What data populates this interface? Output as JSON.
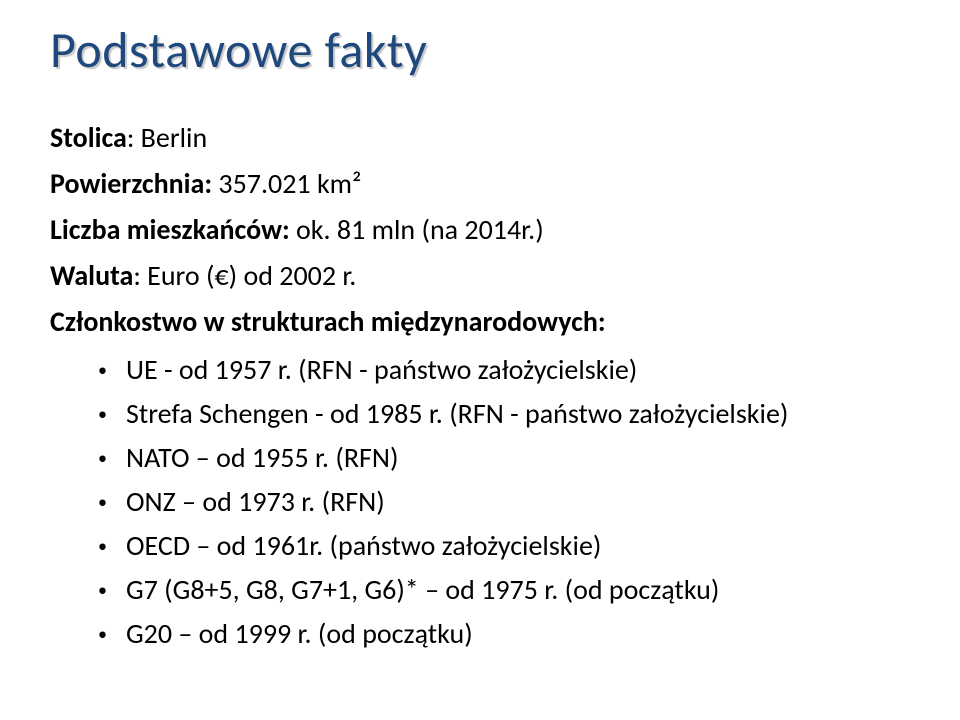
{
  "title": {
    "text": "Podstawowe fakty",
    "color": "#1f497d",
    "shadow_color": "#c9c9c9",
    "font_size": 50
  },
  "lines": [
    {
      "label": "Stolica",
      "value": ": Berlin"
    },
    {
      "label": "Powierzchnia:",
      "value": " 357.021 km²"
    },
    {
      "label": "Liczba mieszkańców:",
      "value": " ok. 81 mln (na 2014r.)"
    },
    {
      "label": "Waluta",
      "value": ": Euro (€) od 2002 r."
    },
    {
      "label": "Członkostwo w strukturach międzynarodowych:",
      "value": ""
    }
  ],
  "bullets": [
    "UE - od 1957 r. (RFN - państwo założycielskie)",
    "Strefa Schengen - od 1985 r. (RFN - państwo założycielskie)",
    "NATO – od 1955 r. (RFN)",
    "ONZ – od 1973 r. (RFN)",
    "OECD – od 1961r. (państwo założycielskie)",
    "G7 (G8+5, G8, G7+1, G6)* – od 1975 r. (od początku)",
    "G20 – od 1999 r. (od początku)"
  ],
  "colors": {
    "text": "#000000",
    "background": "#ffffff"
  }
}
